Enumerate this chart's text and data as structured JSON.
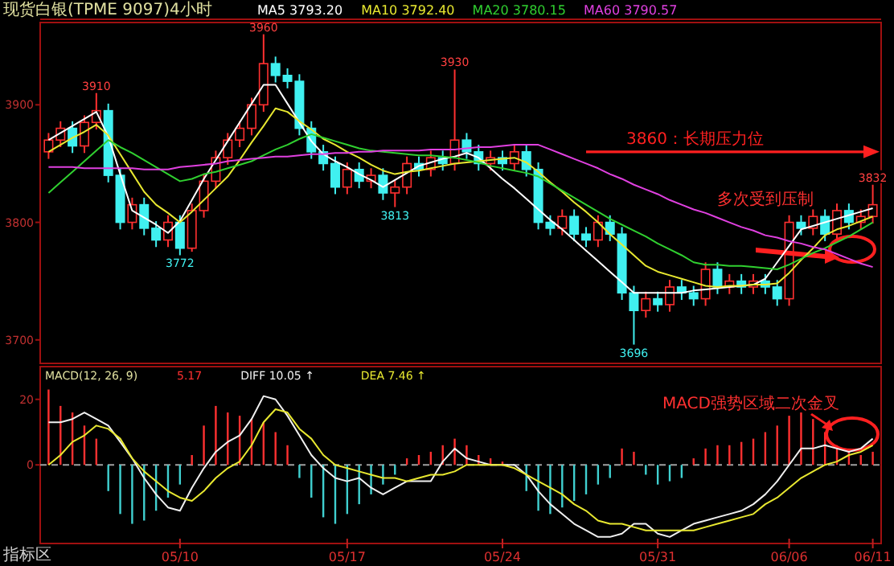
{
  "chart_data": [
    {
      "type": "candlestick",
      "title": "现货白银(TPME 9097)4小时",
      "categories": [
        null,
        null,
        null,
        null,
        null,
        null,
        null,
        null,
        null,
        null,
        null,
        null,
        null,
        null,
        null,
        null,
        null,
        null,
        null,
        null,
        null,
        null,
        null,
        null,
        null,
        null,
        null,
        null,
        null,
        null,
        null,
        null,
        null,
        null,
        null,
        null,
        null,
        null,
        null,
        null,
        null,
        null,
        null,
        null,
        null,
        null,
        null,
        null,
        null,
        null,
        null,
        null,
        null,
        null,
        null,
        null,
        null,
        null,
        null,
        null,
        null,
        null,
        null,
        null,
        null,
        null,
        null,
        null,
        null,
        null
      ],
      "ohlc": [
        [
          3860,
          3876,
          3854,
          3870
        ],
        [
          3870,
          3886,
          3864,
          3880
        ],
        [
          3880,
          3886,
          3859,
          3865
        ],
        [
          3865,
          3891,
          3859,
          3885
        ],
        [
          3885,
          3910,
          3879,
          3895
        ],
        [
          3895,
          3901,
          3834,
          3840
        ],
        [
          3840,
          3846,
          3794,
          3800
        ],
        [
          3800,
          3821,
          3794,
          3815
        ],
        [
          3815,
          3821,
          3789,
          3795
        ],
        [
          3795,
          3801,
          3779,
          3785
        ],
        [
          3785,
          3806,
          3779,
          3800
        ],
        [
          3800,
          3806,
          3772,
          3778
        ],
        [
          3778,
          3816,
          3775,
          3810
        ],
        [
          3810,
          3841,
          3804,
          3835
        ],
        [
          3835,
          3861,
          3829,
          3855
        ],
        [
          3855,
          3876,
          3849,
          3870
        ],
        [
          3870,
          3886,
          3864,
          3880
        ],
        [
          3880,
          3906,
          3874,
          3900
        ],
        [
          3900,
          3960,
          3894,
          3935
        ],
        [
          3935,
          3941,
          3919,
          3925
        ],
        [
          3925,
          3931,
          3914,
          3920
        ],
        [
          3920,
          3926,
          3874,
          3880
        ],
        [
          3880,
          3886,
          3854,
          3860
        ],
        [
          3860,
          3866,
          3844,
          3850
        ],
        [
          3850,
          3856,
          3824,
          3830
        ],
        [
          3830,
          3851,
          3824,
          3845
        ],
        [
          3845,
          3851,
          3829,
          3835
        ],
        [
          3835,
          3846,
          3829,
          3840
        ],
        [
          3840,
          3846,
          3819,
          3825
        ],
        [
          3825,
          3836,
          3813,
          3830
        ],
        [
          3830,
          3856,
          3824,
          3850
        ],
        [
          3850,
          3856,
          3839,
          3845
        ],
        [
          3845,
          3861,
          3839,
          3855
        ],
        [
          3855,
          3861,
          3844,
          3850
        ],
        [
          3850,
          3930,
          3844,
          3870
        ],
        [
          3870,
          3876,
          3854,
          3860
        ],
        [
          3860,
          3866,
          3844,
          3850
        ],
        [
          3850,
          3861,
          3844,
          3855
        ],
        [
          3855,
          3861,
          3844,
          3850
        ],
        [
          3850,
          3866,
          3844,
          3860
        ],
        [
          3860,
          3866,
          3839,
          3845
        ],
        [
          3845,
          3851,
          3794,
          3800
        ],
        [
          3800,
          3806,
          3789,
          3795
        ],
        [
          3795,
          3811,
          3789,
          3805
        ],
        [
          3805,
          3811,
          3784,
          3790
        ],
        [
          3790,
          3796,
          3779,
          3785
        ],
        [
          3785,
          3806,
          3779,
          3800
        ],
        [
          3800,
          3806,
          3784,
          3790
        ],
        [
          3790,
          3796,
          3734,
          3740
        ],
        [
          3740,
          3746,
          3696,
          3725
        ],
        [
          3725,
          3741,
          3719,
          3735
        ],
        [
          3735,
          3741,
          3724,
          3730
        ],
        [
          3730,
          3751,
          3724,
          3745
        ],
        [
          3745,
          3751,
          3734,
          3740
        ],
        [
          3740,
          3746,
          3729,
          3735
        ],
        [
          3735,
          3766,
          3729,
          3760
        ],
        [
          3760,
          3766,
          3739,
          3745
        ],
        [
          3745,
          3756,
          3739,
          3750
        ],
        [
          3750,
          3756,
          3739,
          3745
        ],
        [
          3745,
          3756,
          3739,
          3750
        ],
        [
          3750,
          3756,
          3739,
          3745
        ],
        [
          3745,
          3751,
          3729,
          3735
        ],
        [
          3735,
          3806,
          3729,
          3800
        ],
        [
          3800,
          3806,
          3789,
          3795
        ],
        [
          3795,
          3811,
          3789,
          3805
        ],
        [
          3805,
          3811,
          3784,
          3790
        ],
        [
          3790,
          3816,
          3784,
          3810
        ],
        [
          3810,
          3816,
          3794,
          3800
        ],
        [
          3800,
          3811,
          3794,
          3805
        ],
        [
          3805,
          3832,
          3799,
          3815
        ]
      ],
      "series": [
        {
          "name": "MA5 3793.20",
          "type": "line",
          "color": "#ffffff",
          "values": [
            3870,
            3876,
            3882,
            3888,
            3894,
            3873,
            3841,
            3810,
            3804,
            3798,
            3791,
            3801,
            3819,
            3837,
            3853,
            3869,
            3885,
            3901,
            3917,
            3917,
            3901,
            3885,
            3869,
            3858,
            3852,
            3847,
            3841,
            3836,
            3830,
            3836,
            3842,
            3848,
            3851,
            3854,
            3856,
            3859,
            3855,
            3846,
            3837,
            3829,
            3820,
            3811,
            3802,
            3794,
            3785,
            3776,
            3767,
            3758,
            3749,
            3740,
            3740,
            3740,
            3740,
            3740,
            3742,
            3743,
            3744,
            3745,
            3746,
            3747,
            3752,
            3766,
            3780,
            3794,
            3797,
            3800,
            3803,
            3806,
            3809,
            3812
          ]
        },
        {
          "name": "MA10 3792.40",
          "type": "line",
          "color": "#e8e830",
          "values": [
            3860,
            3866,
            3872,
            3877,
            3883,
            3874,
            3858,
            3842,
            3826,
            3815,
            3808,
            3800,
            3809,
            3819,
            3829,
            3839,
            3853,
            3868,
            3882,
            3897,
            3894,
            3886,
            3879,
            3871,
            3866,
            3860,
            3855,
            3849,
            3844,
            3841,
            3843,
            3844,
            3846,
            3848,
            3850,
            3851,
            3852,
            3853,
            3854,
            3855,
            3851,
            3843,
            3834,
            3826,
            3817,
            3809,
            3800,
            3790,
            3781,
            3772,
            3763,
            3758,
            3755,
            3752,
            3749,
            3746,
            3745,
            3746,
            3746,
            3747,
            3747,
            3748,
            3757,
            3768,
            3778,
            3789,
            3794,
            3797,
            3801,
            3805
          ]
        },
        {
          "name": "MA20 3780.15",
          "type": "line",
          "color": "#30d030",
          "values": [
            3825,
            3834,
            3843,
            3852,
            3861,
            3870,
            3864,
            3859,
            3853,
            3847,
            3841,
            3835,
            3837,
            3841,
            3843,
            3846,
            3849,
            3852,
            3857,
            3862,
            3866,
            3871,
            3875,
            3872,
            3869,
            3866,
            3863,
            3861,
            3860,
            3859,
            3858,
            3857,
            3857,
            3856,
            3855,
            3853,
            3851,
            3848,
            3846,
            3844,
            3842,
            3839,
            3833,
            3827,
            3821,
            3815,
            3809,
            3803,
            3798,
            3793,
            3788,
            3782,
            3777,
            3772,
            3766,
            3764,
            3764,
            3763,
            3763,
            3762,
            3761,
            3760,
            3764,
            3769,
            3774,
            3778,
            3783,
            3788,
            3794,
            3800
          ]
        },
        {
          "name": "MA60 3790.57",
          "type": "line",
          "color": "#e040e0",
          "values": [
            3847,
            3847,
            3847,
            3846,
            3846,
            3846,
            3846,
            3846,
            3845,
            3845,
            3845,
            3847,
            3848,
            3849,
            3850,
            3852,
            3853,
            3854,
            3855,
            3856,
            3856,
            3857,
            3858,
            3858,
            3859,
            3859,
            3860,
            3860,
            3861,
            3861,
            3861,
            3861,
            3862,
            3862,
            3862,
            3863,
            3864,
            3864,
            3865,
            3866,
            3866,
            3866,
            3862,
            3858,
            3854,
            3850,
            3846,
            3841,
            3837,
            3832,
            3828,
            3824,
            3819,
            3815,
            3811,
            3808,
            3804,
            3800,
            3796,
            3793,
            3789,
            3787,
            3784,
            3782,
            3779,
            3777,
            3773,
            3769,
            3765,
            3762
          ]
        }
      ],
      "ylim": [
        3680,
        3970
      ],
      "yticks": [
        3700,
        3800,
        3900
      ],
      "tick_labels": "y",
      "legend": "top",
      "ref_lines": [
        {
          "axis": "y",
          "value": 3860,
          "label": "3860：长期压力位",
          "color": "#ff2020"
        }
      ],
      "annotations": [
        {
          "text": "3910",
          "y": 3910
        },
        {
          "text": "3960",
          "y": 3960
        },
        {
          "text": "3930",
          "y": 3930
        },
        {
          "text": "3772",
          "y": 3772
        },
        {
          "text": "3813",
          "y": 3813
        },
        {
          "text": "3696",
          "y": 3696
        },
        {
          "text": "3832",
          "y": 3832
        },
        "多次受到压制"
      ]
    },
    {
      "type": "bar",
      "title": "MACD(12, 26, 9)",
      "categories": [
        null,
        null,
        null,
        null,
        null,
        null,
        null,
        null,
        null,
        null,
        null,
        "05/10",
        null,
        null,
        null,
        null,
        null,
        null,
        null,
        null,
        null,
        null,
        null,
        null,
        null,
        "05/17",
        null,
        null,
        null,
        null,
        null,
        null,
        null,
        null,
        null,
        null,
        null,
        null,
        "05/24",
        null,
        null,
        null,
        null,
        null,
        null,
        null,
        null,
        null,
        null,
        null,
        null,
        "05/31",
        null,
        null,
        null,
        null,
        null,
        null,
        null,
        null,
        null,
        null,
        "06/06",
        null,
        null,
        null,
        null,
        null,
        null,
        "06/11"
      ],
      "series": [
        {
          "name": "5.17",
          "type": "bar",
          "values": [
            23,
            18,
            16,
            12,
            8,
            -8,
            -15,
            -18,
            -17,
            -14,
            -10,
            -6,
            3,
            12,
            18,
            16,
            15,
            14,
            13,
            10,
            6,
            -4,
            -10,
            -16,
            -18,
            -15,
            -12,
            -9,
            -6,
            -3,
            2,
            3,
            4,
            6,
            8,
            6,
            3,
            2,
            1,
            null,
            -8,
            -14,
            -15,
            -13,
            -11,
            -9,
            -6,
            -4,
            5,
            4,
            -3,
            -6,
            -5,
            -4,
            2,
            5,
            6,
            6,
            7,
            8,
            10,
            12,
            15,
            16,
            14,
            10,
            6,
            4,
            3,
            4
          ],
          "colors": [
            "#ff3030",
            "#ff3030",
            "#ff3030",
            "#ff3030",
            "#ff3030",
            "#40d0d0",
            "#40d0d0",
            "#40d0d0",
            "#40d0d0",
            "#40d0d0",
            "#40d0d0",
            "#40d0d0",
            "#ff3030",
            "#ff3030",
            "#ff3030",
            "#ff3030",
            "#ff3030",
            "#ff3030",
            "#ff3030",
            "#ff3030",
            "#ff3030",
            "#40d0d0",
            "#40d0d0",
            "#40d0d0",
            "#40d0d0",
            "#40d0d0",
            "#40d0d0",
            "#40d0d0",
            "#40d0d0",
            "#40d0d0",
            "#ff3030",
            "#ff3030",
            "#ff3030",
            "#ff3030",
            "#ff3030",
            "#ff3030",
            "#ff3030",
            "#ff3030",
            "#ff3030",
            null,
            "#40d0d0",
            "#40d0d0",
            "#40d0d0",
            "#40d0d0",
            "#40d0d0",
            "#40d0d0",
            "#40d0d0",
            "#40d0d0",
            "#ff3030",
            "#ff3030",
            "#40d0d0",
            "#40d0d0",
            "#40d0d0",
            "#40d0d0",
            "#ff3030",
            "#ff3030",
            "#ff3030",
            "#ff3030",
            "#ff3030",
            "#ff3030",
            "#ff3030",
            "#ff3030",
            "#ff3030",
            "#ff3030",
            "#ff3030",
            "#ff3030",
            "#ff3030",
            "#ff3030",
            "#ff3030",
            "#ff3030"
          ]
        },
        {
          "name": "DIFF 10.05 ↑",
          "type": "line",
          "color": "#f0f0f0",
          "values": [
            13,
            13,
            14,
            16,
            14,
            12,
            7,
            2,
            -4,
            -9,
            -13,
            -14,
            -7,
            -1,
            4,
            7,
            9,
            14,
            21,
            20,
            15,
            9,
            3,
            -1,
            -4,
            -5,
            -4,
            -7,
            -9,
            -7,
            -5,
            -5,
            -5,
            1,
            5,
            2,
            1,
            0,
            0,
            0,
            -3,
            -8,
            -12,
            -15,
            -18,
            -20,
            -22,
            -22,
            -21,
            -18,
            -18,
            -21,
            -22,
            -20,
            -18,
            -17,
            -16,
            -15,
            -14,
            -12,
            -9,
            -5,
            0,
            5,
            5,
            6,
            5,
            4,
            5,
            8
          ]
        },
        {
          "name": "DEA 7.46 ↑",
          "type": "line",
          "color": "#e8e830",
          "values": [
            0,
            3,
            7,
            9,
            12,
            11,
            8,
            2,
            -2,
            -5,
            -8,
            -10,
            -11,
            -8,
            -4,
            -1,
            1,
            6,
            13,
            17,
            16,
            11,
            8,
            3,
            0,
            -1,
            -2,
            -3,
            -4,
            -4,
            -5,
            -4,
            -3,
            -3,
            -2,
            0,
            0,
            0,
            0,
            -1,
            -3,
            -5,
            -7,
            -9,
            -12,
            -14,
            -17,
            -18,
            -18,
            -19,
            -20,
            -20,
            -20,
            -20,
            -20,
            -19,
            -18,
            -17,
            -16,
            -15,
            -12,
            -10,
            -7,
            -4,
            -2,
            0,
            1,
            3,
            4,
            6
          ]
        }
      ],
      "ylim": [
        -24,
        30
      ],
      "yticks": [
        0,
        20
      ],
      "legend": "top",
      "ref_lines": [
        {
          "axis": "y",
          "value": 0,
          "color": "#a0a0a0",
          "line_style": "dashed"
        }
      ],
      "annotations": [
        "MACD强势区域二次金叉",
        "指标区"
      ]
    }
  ]
}
